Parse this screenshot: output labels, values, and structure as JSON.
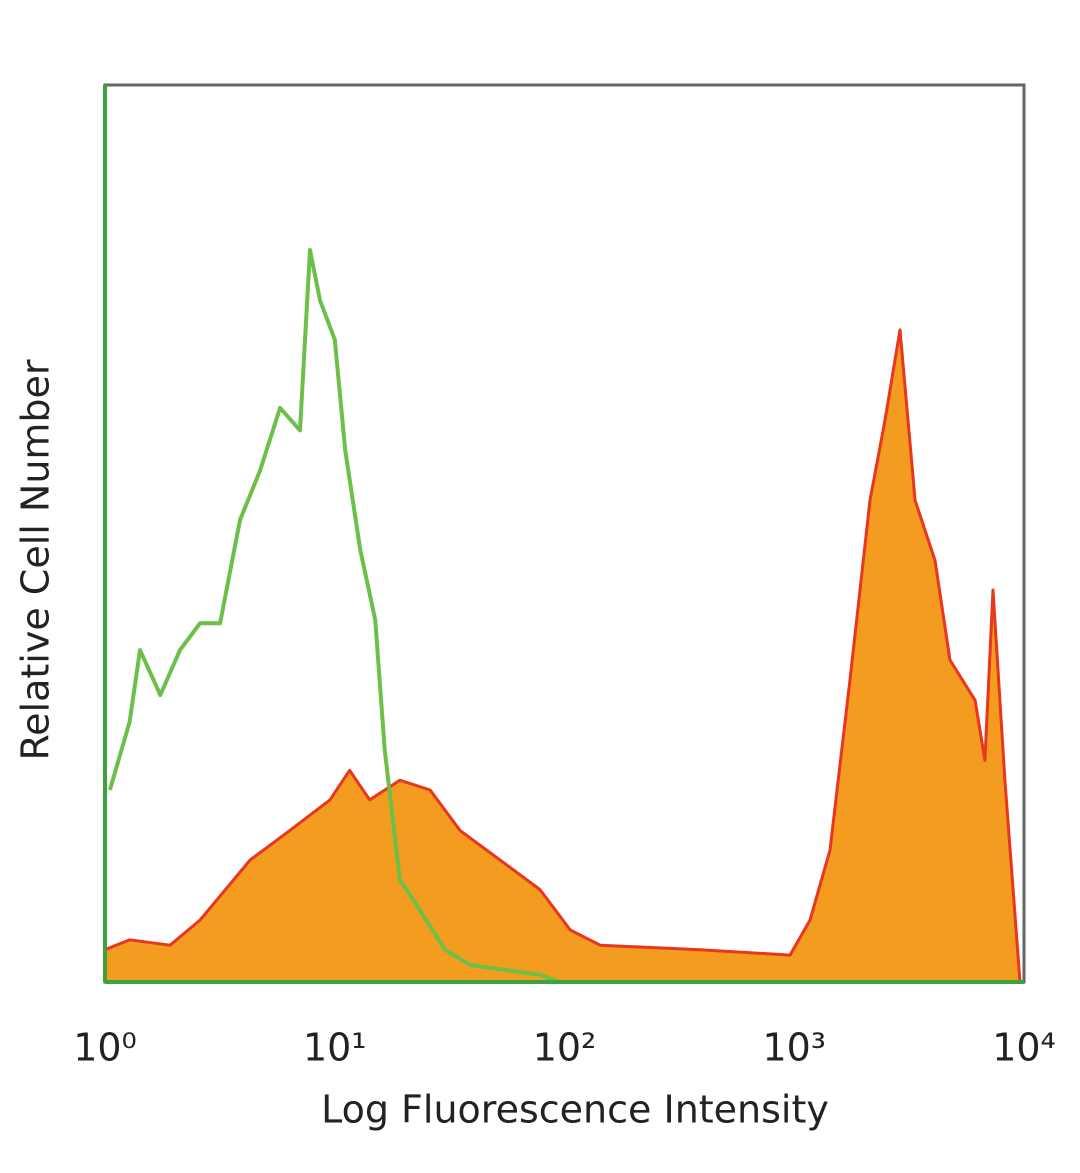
{
  "chart_data": {
    "type": "line",
    "xscale": "log",
    "xlabel": "Log Fluorescence Intensity",
    "ylabel": "Relative Cell Number",
    "xlim": [
      1,
      10000
    ],
    "ylim": [
      0,
      100
    ],
    "xticks": [
      {
        "value": 1,
        "label": "10⁰"
      },
      {
        "value": 10,
        "label": "10¹"
      },
      {
        "value": 100,
        "label": "10²"
      },
      {
        "value": 1000,
        "label": "10³"
      },
      {
        "value": 10000,
        "label": "10⁴"
      }
    ],
    "grid": false,
    "series": [
      {
        "color": "#e8361f",
        "fill": "#f39c1f",
        "x": [
          1,
          1.28,
          1.92,
          2.59,
          4.28,
          6.38,
          9.53,
          11.6,
          14.2,
          19.2,
          26.0,
          35.1,
          52.4,
          78.2,
          106,
          143,
          389,
          958,
          1171,
          1431,
          1749,
          2137,
          2486,
          2885,
          3356,
          4100,
          4764,
          6123,
          6761,
          7328,
          8260,
          9610
        ],
        "values": [
          3.6,
          4.7,
          4.1,
          6.9,
          13.6,
          16.9,
          20.3,
          23.6,
          20.3,
          22.5,
          21.4,
          16.9,
          13.6,
          10.3,
          5.8,
          4.1,
          3.6,
          3.0,
          6.9,
          14.7,
          33.7,
          53.7,
          62.7,
          72.7,
          53.7,
          47,
          35.9,
          31.4,
          24.7,
          43.7,
          22.5,
          0
        ]
      },
      {
        "color": "#6cc04a",
        "x": [
          1.05,
          1.28,
          1.42,
          1.74,
          2.12,
          2.59,
          3.17,
          3.87,
          4.73,
          5.78,
          7.06,
          7.8,
          8.63,
          10.0,
          11.1,
          12.9,
          15.0,
          16.5,
          19.2,
          23.5,
          30.2,
          38.8,
          78.2,
          95.5
        ],
        "values": [
          21.4,
          29,
          37,
          32,
          37,
          40,
          40,
          51.5,
          57,
          64,
          61.5,
          81.6,
          76,
          71.6,
          59.3,
          48.2,
          40.4,
          25.9,
          11.4,
          8,
          3.6,
          1.9,
          0.8,
          0
        ]
      }
    ]
  }
}
